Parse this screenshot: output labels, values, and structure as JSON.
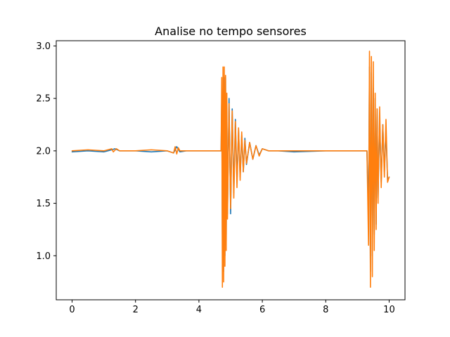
{
  "chart_data": {
    "type": "line",
    "title": "Analise no tempo sensores",
    "xlabel": "",
    "ylabel": "",
    "xlim": [
      -0.5,
      10.5
    ],
    "ylim": [
      0.58,
      3.05
    ],
    "xticks": [
      0,
      2,
      4,
      6,
      8,
      10
    ],
    "xtick_labels": [
      "0",
      "2",
      "4",
      "6",
      "8",
      "10"
    ],
    "yticks": [
      1.0,
      1.5,
      2.0,
      2.5,
      3.0
    ],
    "ytick_labels": [
      "1.0",
      "1.5",
      "2.0",
      "2.5",
      "3.0"
    ],
    "grid": false,
    "legend": "none",
    "series": [
      {
        "color": "#1f77b4",
        "x": [
          0.0,
          0.5,
          1.0,
          1.25,
          1.35,
          1.5,
          2.0,
          2.5,
          3.0,
          3.2,
          3.3,
          3.4,
          3.6,
          4.0,
          4.5,
          4.7,
          4.72,
          4.74,
          4.76,
          4.78,
          4.8,
          4.82,
          4.84,
          4.86,
          4.88,
          4.9,
          4.95,
          5.0,
          5.05,
          5.1,
          5.15,
          5.2,
          5.25,
          5.3,
          5.35,
          5.4,
          5.45,
          5.5,
          5.6,
          5.7,
          5.8,
          5.9,
          6.0,
          6.2,
          6.5,
          7.0,
          8.0,
          9.0,
          9.3,
          9.35,
          9.38,
          9.41,
          9.44,
          9.47,
          9.5,
          9.53,
          9.56,
          9.59,
          9.62,
          9.65,
          9.7,
          9.75,
          9.8,
          9.85,
          9.9,
          9.95,
          10.0
        ],
        "y": [
          1.99,
          2.0,
          1.99,
          2.01,
          2.02,
          2.0,
          2.0,
          1.99,
          2.0,
          1.98,
          2.04,
          1.99,
          2.0,
          2.0,
          2.0,
          2.0,
          2.5,
          1.2,
          2.6,
          0.85,
          2.7,
          1.0,
          2.7,
          1.1,
          2.4,
          1.4,
          2.5,
          1.4,
          2.4,
          1.6,
          2.3,
          1.7,
          2.2,
          1.75,
          2.15,
          1.8,
          2.12,
          1.87,
          2.08,
          1.92,
          2.05,
          1.96,
          2.02,
          2.0,
          2.0,
          1.99,
          2.0,
          2.0,
          2.0,
          1.4,
          2.8,
          0.85,
          2.75,
          1.0,
          2.6,
          1.2,
          2.5,
          1.3,
          2.4,
          1.55,
          2.3,
          1.7,
          2.25,
          1.8,
          2.2,
          1.72,
          1.75
        ]
      },
      {
        "color": "#ff7f0e",
        "x": [
          0.0,
          0.5,
          1.0,
          1.25,
          1.3,
          1.4,
          1.5,
          2.0,
          2.5,
          3.0,
          3.2,
          3.25,
          3.3,
          3.35,
          3.4,
          3.6,
          4.0,
          4.5,
          4.7,
          4.72,
          4.74,
          4.76,
          4.78,
          4.8,
          4.82,
          4.84,
          4.86,
          4.88,
          4.9,
          4.95,
          5.0,
          5.05,
          5.1,
          5.15,
          5.2,
          5.25,
          5.3,
          5.35,
          5.4,
          5.45,
          5.5,
          5.6,
          5.7,
          5.8,
          5.9,
          6.0,
          6.2,
          6.5,
          7.0,
          8.0,
          9.0,
          9.3,
          9.35,
          9.38,
          9.41,
          9.44,
          9.47,
          9.5,
          9.53,
          9.56,
          9.59,
          9.62,
          9.65,
          9.7,
          9.75,
          9.8,
          9.85,
          9.9,
          9.95,
          10.0
        ],
        "y": [
          2.0,
          2.01,
          2.0,
          2.02,
          1.99,
          2.02,
          2.0,
          2.0,
          2.01,
          2.0,
          1.98,
          2.04,
          1.97,
          2.03,
          2.0,
          2.0,
          2.0,
          2.0,
          2.0,
          2.7,
          0.7,
          2.8,
          0.75,
          2.8,
          0.9,
          2.72,
          1.05,
          2.55,
          1.35,
          2.45,
          1.45,
          2.38,
          1.55,
          2.28,
          1.65,
          2.22,
          1.72,
          2.18,
          1.8,
          2.1,
          1.88,
          2.08,
          1.92,
          2.05,
          1.95,
          2.02,
          2.0,
          2.0,
          2.0,
          2.0,
          2.0,
          2.0,
          1.1,
          2.95,
          0.7,
          2.9,
          0.8,
          2.85,
          1.05,
          2.55,
          1.25,
          2.4,
          1.5,
          2.42,
          1.65,
          2.25,
          1.75,
          2.3,
          1.7,
          1.75
        ]
      }
    ]
  }
}
